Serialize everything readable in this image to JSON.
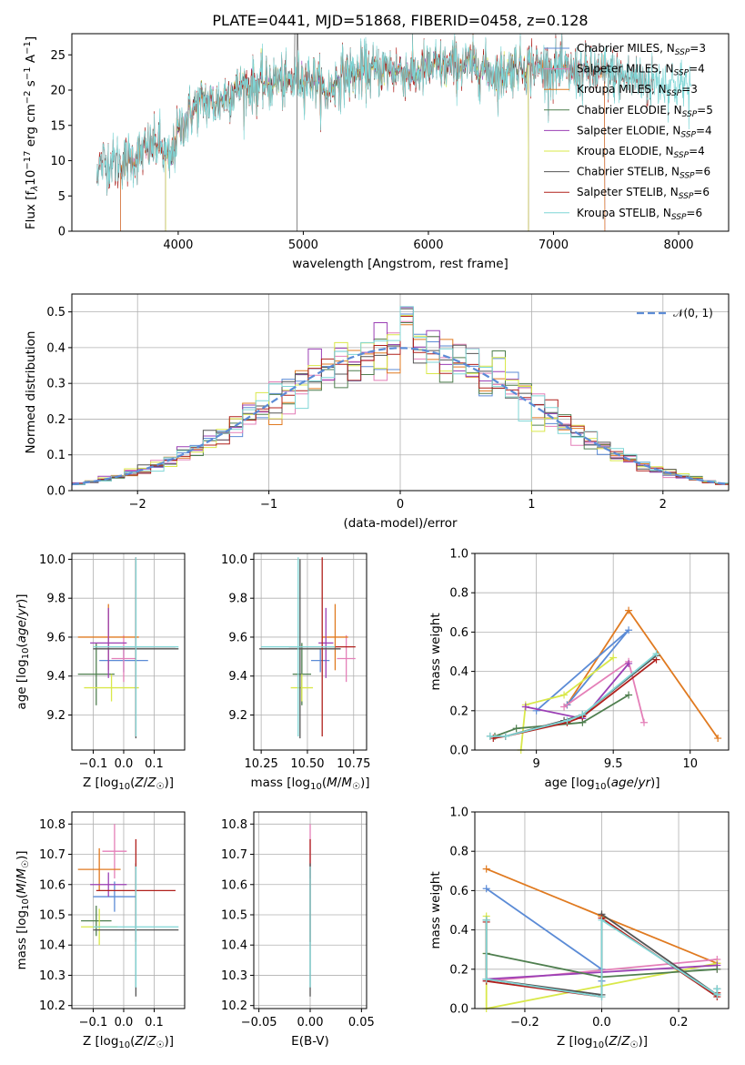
{
  "colors": {
    "Chabrier MILES": "#5b8bd6",
    "Salpeter MILES": "#e47fb8",
    "Kroupa MILES": "#e07a20",
    "Chabrier ELODIE": "#4f7f4f",
    "Salpeter ELODIE": "#9b3fb5",
    "Kroupa ELODIE": "#d9e84a",
    "Chabrier STELIB": "#555555",
    "Salpeter STELIB": "#b0201c",
    "Kroupa STELIB": "#7fd6d6"
  },
  "chart_data": [
    {
      "id": "spectrum",
      "type": "line",
      "title": "PLATE=0441, MJD=51868, FIBERID=0458, z=0.128",
      "xlabel": "wavelength [Angstrom, rest frame]",
      "ylabel_parts": [
        "Flux [f",
        "λ",
        "10",
        "−17",
        " erg cm",
        "−2",
        " s",
        "−1",
        " A",
        "−1",
        "]"
      ],
      "xlim": [
        3150,
        8400
      ],
      "ylim": [
        0,
        28
      ],
      "xticks": [
        4000,
        5000,
        6000,
        7000,
        8000
      ],
      "yticks": [
        0,
        5,
        10,
        15,
        20,
        25
      ],
      "grid": false,
      "legend_position": "upper right",
      "legend": [
        {
          "pre": "Chabrier MILES, N",
          "sub": "SSP",
          "post": "=3"
        },
        {
          "pre": "Salpeter MILES, N",
          "sub": "SSP",
          "post": "=4"
        },
        {
          "pre": "Kroupa MILES, N",
          "sub": "SSP",
          "post": "=3"
        },
        {
          "pre": "Chabrier ELODIE, N",
          "sub": "SSP",
          "post": "=5"
        },
        {
          "pre": "Salpeter ELODIE, N",
          "sub": "SSP",
          "post": "=4"
        },
        {
          "pre": "Kroupa ELODIE, N",
          "sub": "SSP",
          "post": "=4"
        },
        {
          "pre": "Chabrier STELIB, N",
          "sub": "SSP",
          "post": "=6"
        },
        {
          "pre": "Salpeter STELIB, N",
          "sub": "SSP",
          "post": "=6"
        },
        {
          "pre": "Kroupa STELIB, N",
          "sub": "SSP",
          "post": "=6"
        }
      ],
      "continuum": [
        [
          3350,
          9.2
        ],
        [
          3450,
          10.0
        ],
        [
          3550,
          9.7
        ],
        [
          3650,
          10.5
        ],
        [
          3750,
          11.5
        ],
        [
          3850,
          12.5
        ],
        [
          3930,
          9.5
        ],
        [
          4000,
          14.0
        ],
        [
          4100,
          17.0
        ],
        [
          4200,
          18.5
        ],
        [
          4300,
          18.0
        ],
        [
          4400,
          19.5
        ],
        [
          4500,
          20.5
        ],
        [
          4600,
          20.6
        ],
        [
          4700,
          20.9
        ],
        [
          4800,
          21.6
        ],
        [
          4860,
          20.6
        ],
        [
          4950,
          21.8
        ],
        [
          5100,
          21.5
        ],
        [
          5175,
          19.3
        ],
        [
          5300,
          22.0
        ],
        [
          5500,
          22.6
        ],
        [
          5700,
          23.0
        ],
        [
          5900,
          22.3
        ],
        [
          6000,
          23.1
        ],
        [
          6200,
          23.5
        ],
        [
          6400,
          23.4
        ],
        [
          6563,
          22.0
        ],
        [
          6700,
          23.5
        ],
        [
          6900,
          23.2
        ],
        [
          7100,
          22.6
        ],
        [
          7300,
          22.4
        ],
        [
          7500,
          22.1
        ],
        [
          7700,
          21.3
        ],
        [
          7900,
          20.9
        ],
        [
          8050,
          20.6
        ],
        [
          8100,
          20.3
        ]
      ],
      "series_ranges": [
        {
          "name": "Chabrier MILES",
          "x": [
            3540,
            7410
          ]
        },
        {
          "name": "Salpeter MILES",
          "x": [
            3540,
            7410
          ]
        },
        {
          "name": "Kroupa MILES",
          "x": [
            3540,
            7410
          ]
        },
        {
          "name": "Chabrier ELODIE",
          "x": [
            3900,
            6800
          ]
        },
        {
          "name": "Salpeter ELODIE",
          "x": [
            3900,
            6800
          ]
        },
        {
          "name": "Kroupa ELODIE",
          "x": [
            3900,
            6800
          ]
        },
        {
          "name": "Chabrier STELIB",
          "x": [
            3350,
            7800
          ]
        },
        {
          "name": "Salpeter STELIB",
          "x": [
            3350,
            7800
          ]
        },
        {
          "name": "Kroupa STELIB",
          "x": [
            3350,
            8100
          ]
        }
      ]
    },
    {
      "id": "residuals",
      "type": "line",
      "xlabel": "(data-model)/error",
      "ylabel": "Normed distribution",
      "xlim": [
        -2.5,
        2.5
      ],
      "ylim": [
        0,
        0.55
      ],
      "xticks": [
        -2,
        -1,
        0,
        1,
        2
      ],
      "yticks": [
        0.0,
        0.1,
        0.2,
        0.3,
        0.4,
        0.5
      ],
      "grid": true,
      "legend_position": "upper right",
      "legend": [
        {
          "name": "𝒩(0, 1)",
          "style": "dashed"
        }
      ],
      "bin_width": 0.1
    },
    {
      "id": "age_vs_Z",
      "type": "scatter",
      "xlabel": "Z [log10(Z/Z☉)]",
      "ylabel": "age  [log10(age/yr)]",
      "xlim": [
        -0.17,
        0.2
      ],
      "ylim": [
        9.02,
        10.03
      ],
      "xticks": [
        -0.1,
        0.0,
        0.1
      ],
      "xticklabels": [
        "−0.1",
        "0.0",
        "0.1"
      ],
      "yticks": [
        9.2,
        9.4,
        9.6,
        9.8,
        10.0
      ],
      "grid": true,
      "points": [
        {
          "name": "Chabrier MILES",
          "x": 0.0,
          "xerr": 0.08,
          "y": 9.48,
          "yerr": 0.06
        },
        {
          "name": "Salpeter MILES",
          "x": 0.0,
          "xerr": 0.04,
          "y": 9.49,
          "yerr": 0.12
        },
        {
          "name": "Kroupa MILES",
          "x": -0.05,
          "xerr": 0.1,
          "y": 9.6,
          "yerr": 0.17
        },
        {
          "name": "Chabrier ELODIE",
          "x": -0.09,
          "xerr": 0.06,
          "y": 9.41,
          "yerr": 0.16
        },
        {
          "name": "Salpeter ELODIE",
          "x": -0.05,
          "xerr": 0.06,
          "y": 9.57,
          "yerr": 0.18
        },
        {
          "name": "Kroupa ELODIE",
          "x": -0.04,
          "xerr": 0.09,
          "y": 9.34,
          "yerr": 0.07
        },
        {
          "name": "Chabrier STELIB",
          "x": 0.04,
          "xerr": 0.14,
          "y": 9.54,
          "yerr": 0.46
        },
        {
          "name": "Salpeter STELIB",
          "x": 0.04,
          "xerr": 0.13,
          "y": 9.55,
          "yerr": 0.46
        },
        {
          "name": "Kroupa STELIB",
          "x": 0.04,
          "xerr": 0.14,
          "y": 9.55,
          "yerr": 0.46
        }
      ]
    },
    {
      "id": "age_vs_mass",
      "type": "scatter",
      "xlabel": "mass [log10(M/M☉)]",
      "xlim": [
        10.21,
        10.82
      ],
      "ylim": [
        9.02,
        10.03
      ],
      "xticks": [
        10.25,
        10.5,
        10.75
      ],
      "xticklabels": [
        "10.25",
        "10.50",
        "10.75"
      ],
      "yticks": [
        9.2,
        9.4,
        9.6,
        9.8,
        10.0
      ],
      "grid": true,
      "points": [
        {
          "name": "Chabrier MILES",
          "x": 10.57,
          "xerr": 0.05,
          "y": 9.48,
          "yerr": 0.06
        },
        {
          "name": "Salpeter MILES",
          "x": 10.71,
          "xerr": 0.05,
          "y": 9.49,
          "yerr": 0.12
        },
        {
          "name": "Kroupa MILES",
          "x": 10.65,
          "xerr": 0.07,
          "y": 9.6,
          "yerr": 0.17
        },
        {
          "name": "Chabrier ELODIE",
          "x": 10.47,
          "xerr": 0.05,
          "y": 9.41,
          "yerr": 0.16
        },
        {
          "name": "Salpeter ELODIE",
          "x": 10.6,
          "xerr": 0.04,
          "y": 9.57,
          "yerr": 0.18
        },
        {
          "name": "Kroupa ELODIE",
          "x": 10.47,
          "xerr": 0.06,
          "y": 9.34,
          "yerr": 0.07
        },
        {
          "name": "Chabrier STELIB",
          "x": 10.46,
          "xerr": 0.22,
          "y": 9.54,
          "yerr": 0.46
        },
        {
          "name": "Salpeter STELIB",
          "x": 10.58,
          "xerr": 0.18,
          "y": 9.55,
          "yerr": 0.46
        },
        {
          "name": "Kroupa STELIB",
          "x": 10.45,
          "xerr": 0.2,
          "y": 9.55,
          "yerr": 0.46
        }
      ]
    },
    {
      "id": "weight_vs_age",
      "type": "line",
      "xlabel": "age  [log10(age/yr)]",
      "ylabel": "mass weight",
      "xlim": [
        8.6,
        10.25
      ],
      "ylim": [
        0,
        1.0
      ],
      "xticks": [
        9.0,
        9.5,
        10.0
      ],
      "yticks": [
        0.0,
        0.2,
        0.4,
        0.6,
        0.8,
        1.0
      ],
      "grid": true,
      "series": [
        {
          "name": "Kroupa MILES",
          "x": [
            9.2,
            9.6,
            10.18
          ],
          "y": [
            0.23,
            0.71,
            0.06
          ]
        },
        {
          "name": "Chabrier MILES",
          "x": [
            9.2,
            9.6,
            9.0
          ],
          "y": [
            0.23,
            0.61,
            0.2
          ]
        },
        {
          "name": "Salpeter MILES",
          "x": [
            9.18,
            9.6,
            9.7
          ],
          "y": [
            0.22,
            0.45,
            0.14
          ]
        },
        {
          "name": "Kroupa ELODIE",
          "x": [
            8.9,
            8.93,
            9.18,
            9.5
          ],
          "y": [
            0.0,
            0.23,
            0.28,
            0.47
          ]
        },
        {
          "name": "Salpeter ELODIE",
          "x": [
            8.93,
            9.3,
            9.6
          ],
          "y": [
            0.22,
            0.16,
            0.44
          ]
        },
        {
          "name": "Chabrier ELODIE",
          "x": [
            8.73,
            8.87,
            9.3,
            9.6
          ],
          "y": [
            0.07,
            0.11,
            0.14,
            0.28
          ]
        },
        {
          "name": "Chabrier STELIB",
          "x": [
            8.7,
            8.8,
            9.18,
            9.3,
            9.78
          ],
          "y": [
            0.07,
            0.07,
            0.15,
            0.18,
            0.48
          ]
        },
        {
          "name": "Salpeter STELIB",
          "x": [
            8.72,
            8.8,
            9.2,
            9.3,
            9.78
          ],
          "y": [
            0.06,
            0.07,
            0.14,
            0.17,
            0.46
          ]
        },
        {
          "name": "Kroupa STELIB",
          "x": [
            8.7,
            8.8,
            9.2,
            9.3,
            9.78
          ],
          "y": [
            0.07,
            0.07,
            0.15,
            0.18,
            0.49
          ]
        }
      ]
    },
    {
      "id": "mass_vs_Z",
      "type": "scatter",
      "xlabel": "Z [log10(Z/Z☉)]",
      "ylabel": "mass [log10(M/M☉)]",
      "xlim": [
        -0.17,
        0.2
      ],
      "ylim": [
        10.19,
        10.84
      ],
      "xticks": [
        -0.1,
        0.0,
        0.1
      ],
      "xticklabels": [
        "−0.1",
        "0.0",
        "0.1"
      ],
      "yticks": [
        10.2,
        10.3,
        10.4,
        10.5,
        10.6,
        10.7,
        10.8
      ],
      "grid": true,
      "points": [
        {
          "name": "Chabrier MILES",
          "x": -0.03,
          "xerr": 0.07,
          "y": 10.56,
          "yerr": 0.05
        },
        {
          "name": "Salpeter MILES",
          "x": -0.03,
          "xerr": 0.04,
          "y": 10.71,
          "yerr": 0.09
        },
        {
          "name": "Kroupa MILES",
          "x": -0.08,
          "xerr": 0.07,
          "y": 10.65,
          "yerr": 0.07
        },
        {
          "name": "Chabrier ELODIE",
          "x": -0.09,
          "xerr": 0.05,
          "y": 10.48,
          "yerr": 0.05
        },
        {
          "name": "Salpeter ELODIE",
          "x": -0.05,
          "xerr": 0.06,
          "y": 10.6,
          "yerr": 0.04
        },
        {
          "name": "Kroupa ELODIE",
          "x": -0.08,
          "xerr": 0.06,
          "y": 10.46,
          "yerr": 0.06
        },
        {
          "name": "Chabrier STELIB",
          "x": 0.04,
          "xerr": 0.14,
          "y": 10.45,
          "yerr": 0.22
        },
        {
          "name": "Salpeter STELIB",
          "x": 0.04,
          "xerr": 0.13,
          "y": 10.58,
          "yerr": 0.17
        },
        {
          "name": "Kroupa STELIB",
          "x": 0.04,
          "xerr": 0.14,
          "y": 10.46,
          "yerr": 0.2
        }
      ]
    },
    {
      "id": "mass_vs_EBV",
      "type": "scatter",
      "xlabel": "E(B-V)",
      "xlim": [
        -0.055,
        0.055
      ],
      "ylim": [
        10.19,
        10.84
      ],
      "xticks": [
        -0.05,
        0.0,
        0.05
      ],
      "xticklabels": [
        "−0.05",
        "0.00",
        "0.05"
      ],
      "yticks": [
        10.2,
        10.3,
        10.4,
        10.5,
        10.6,
        10.7,
        10.8
      ],
      "grid": true,
      "points": [
        {
          "name": "Salpeter MILES",
          "x": 0.0,
          "y": 10.71,
          "yerr": 0.09
        },
        {
          "name": "Salpeter STELIB",
          "x": 0.0,
          "y": 10.58,
          "yerr": 0.17
        },
        {
          "name": "Chabrier STELIB",
          "x": 0.0,
          "y": 10.45,
          "yerr": 0.22
        },
        {
          "name": "Kroupa STELIB",
          "x": 0.0,
          "y": 10.46,
          "yerr": 0.2
        }
      ]
    },
    {
      "id": "weight_vs_Z",
      "type": "line",
      "xlabel": "Z [log10(Z/Z☉)]",
      "ylabel": "mass weight",
      "xlim": [
        -0.33,
        0.33
      ],
      "ylim": [
        0,
        1.0
      ],
      "xticks": [
        -0.2,
        0.0,
        0.2
      ],
      "xticklabels": [
        "−0.2",
        "0.0",
        "0.2"
      ],
      "yticks": [
        0.0,
        0.2,
        0.4,
        0.6,
        0.8,
        1.0
      ],
      "grid": true,
      "series": [
        {
          "name": "Kroupa MILES",
          "x": [
            -0.3,
            0.0,
            0.3
          ],
          "y": [
            0.71,
            0.47,
            0.23
          ]
        },
        {
          "name": "Chabrier MILES",
          "x": [
            -0.3,
            0.0,
            0.0
          ],
          "y": [
            0.61,
            0.2,
            0.14
          ]
        },
        {
          "name": "Salpeter MILES",
          "x": [
            -0.3,
            0.3,
            0.3
          ],
          "y": [
            0.14,
            0.25,
            0.2
          ]
        },
        {
          "name": "Kroupa ELODIE",
          "x": [
            -0.3,
            -0.3,
            -0.3,
            0.3
          ],
          "y": [
            0.47,
            0.28,
            0.0,
            0.23
          ]
        },
        {
          "name": "Salpeter ELODIE",
          "x": [
            -0.3,
            0.3
          ],
          "y": [
            0.15,
            0.22
          ]
        },
        {
          "name": "Chabrier ELODIE",
          "x": [
            -0.3,
            0.0,
            0.3
          ],
          "y": [
            0.28,
            0.16,
            0.2
          ]
        },
        {
          "name": "Chabrier STELIB",
          "x": [
            -0.3,
            -0.3,
            0.0,
            0.0,
            0.3,
            0.3
          ],
          "y": [
            0.45,
            0.15,
            0.07,
            0.48,
            0.07,
            0.1
          ]
        },
        {
          "name": "Salpeter STELIB",
          "x": [
            -0.3,
            -0.3,
            0.0,
            0.0,
            0.3,
            0.3
          ],
          "y": [
            0.44,
            0.14,
            0.06,
            0.46,
            0.06,
            0.08
          ]
        },
        {
          "name": "Kroupa STELIB",
          "x": [
            -0.3,
            -0.3,
            0.0,
            0.0,
            0.3,
            0.3
          ],
          "y": [
            0.45,
            0.15,
            0.06,
            0.45,
            0.07,
            0.1
          ]
        }
      ]
    }
  ]
}
